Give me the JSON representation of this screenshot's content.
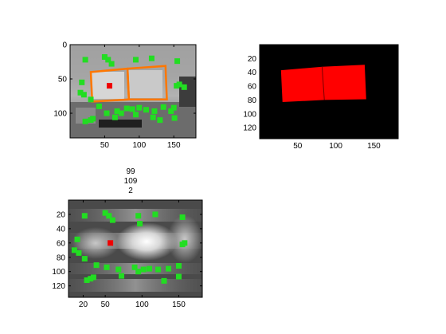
{
  "chart_data": [
    {
      "type": "scatter",
      "panel": "top-left",
      "description_visible": "grayscale desk photo with overlaid markers and orange quadrilaterals",
      "xticks": [
        "50",
        "100",
        "150"
      ],
      "yticks": [
        "0",
        "50",
        "100"
      ],
      "xlim": [
        0,
        182
      ],
      "ylim": [
        136,
        0
      ],
      "colors": {
        "points": "#22dd22",
        "selected": "#ee0000",
        "outline": "#ff7700"
      },
      "points": [
        [
          22,
          22
        ],
        [
          50,
          18
        ],
        [
          55,
          22
        ],
        [
          60,
          28
        ],
        [
          95,
          22
        ],
        [
          118,
          20
        ],
        [
          155,
          24
        ],
        [
          17,
          55
        ],
        [
          15,
          70
        ],
        [
          20,
          73
        ],
        [
          30,
          80
        ],
        [
          42,
          90
        ],
        [
          53,
          100
        ],
        [
          68,
          97
        ],
        [
          74,
          100
        ],
        [
          82,
          93
        ],
        [
          90,
          94
        ],
        [
          95,
          102
        ],
        [
          100,
          92
        ],
        [
          110,
          95
        ],
        [
          122,
          97
        ],
        [
          135,
          91
        ],
        [
          150,
          92
        ],
        [
          146,
          97
        ],
        [
          154,
          60
        ],
        [
          158,
          58
        ],
        [
          22,
          112
        ],
        [
          30,
          110
        ],
        [
          33,
          108
        ],
        [
          65,
          106
        ],
        [
          120,
          106
        ],
        [
          130,
          110
        ],
        [
          151,
          107
        ],
        [
          165,
          62
        ]
      ],
      "selected": [
        [
          57,
          60
        ]
      ],
      "outlines": [
        [
          [
            30,
            40
          ],
          [
            83,
            35
          ],
          [
            85,
            80
          ],
          [
            32,
            83
          ]
        ],
        [
          [
            83,
            35
          ],
          [
            138,
            31
          ],
          [
            140,
            80
          ],
          [
            85,
            80
          ]
        ]
      ]
    },
    {
      "type": "heatmap",
      "panel": "top-right",
      "description_visible": "black mask with red region",
      "xticks": [
        "50",
        "100",
        "150"
      ],
      "yticks": [
        "20",
        "40",
        "60",
        "80",
        "100",
        "120"
      ],
      "xlim": [
        0,
        182
      ],
      "ylim": [
        136,
        0
      ],
      "colors": {
        "background": "#000000",
        "region": "#ff0000"
      },
      "regions": [
        [
          [
            28,
            37
          ],
          [
            82,
            32
          ],
          [
            85,
            80
          ],
          [
            30,
            83
          ]
        ],
        [
          [
            82,
            32
          ],
          [
            138,
            29
          ],
          [
            140,
            79
          ],
          [
            85,
            80
          ]
        ]
      ]
    },
    {
      "type": "heatmap",
      "panel": "bottom-left",
      "title_lines": [
        "99",
        "109",
        "2"
      ],
      "xticks": [
        "20",
        "50",
        "100",
        "150"
      ],
      "yticks": [
        "20",
        "40",
        "60",
        "80",
        "100",
        "120"
      ],
      "xlim": [
        0,
        182
      ],
      "ylim": [
        136,
        0
      ],
      "colors": {
        "points": "#22dd22",
        "selected": "#ee0000"
      },
      "points": [
        [
          22,
          22
        ],
        [
          50,
          18
        ],
        [
          55,
          22
        ],
        [
          60,
          28
        ],
        [
          95,
          22
        ],
        [
          118,
          20
        ],
        [
          155,
          24
        ],
        [
          97,
          33
        ],
        [
          12,
          55
        ],
        [
          8,
          70
        ],
        [
          14,
          74
        ],
        [
          22,
          82
        ],
        [
          38,
          91
        ],
        [
          52,
          94
        ],
        [
          68,
          97
        ],
        [
          72,
          106
        ],
        [
          90,
          94
        ],
        [
          95,
          100
        ],
        [
          102,
          97
        ],
        [
          110,
          96
        ],
        [
          122,
          97
        ],
        [
          136,
          96
        ],
        [
          150,
          92
        ],
        [
          150,
          107
        ],
        [
          158,
          60
        ],
        [
          155,
          62
        ],
        [
          25,
          112
        ],
        [
          30,
          110
        ],
        [
          34,
          108
        ],
        [
          130,
          113
        ]
      ],
      "selected": [
        [
          57,
          60
        ]
      ]
    }
  ]
}
